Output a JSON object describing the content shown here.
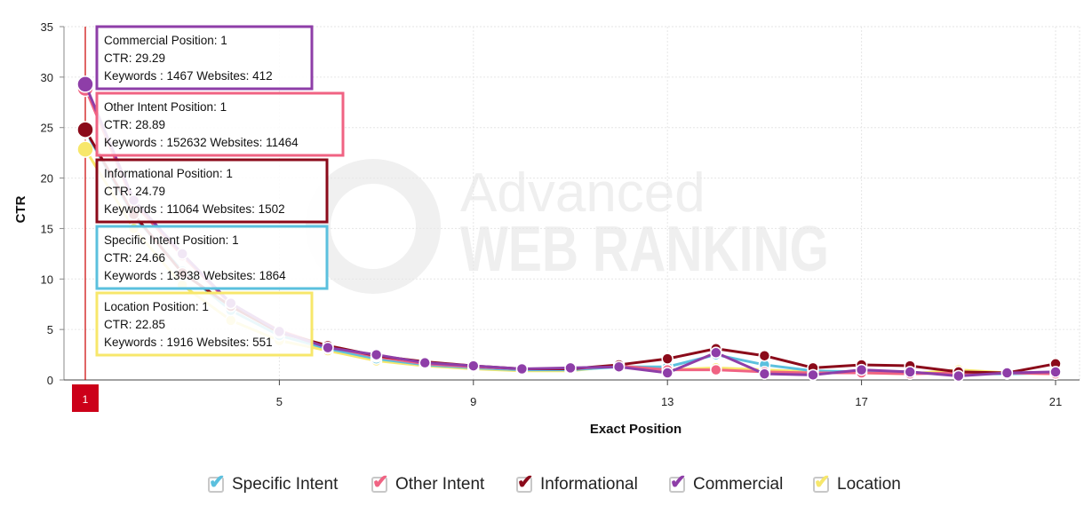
{
  "chart_data": {
    "type": "line",
    "title": "",
    "xlabel": "Exact Position",
    "ylabel": "CTR",
    "xlim": [
      1,
      21.5
    ],
    "ylim": [
      0,
      35
    ],
    "x_ticks": [
      5,
      9,
      13,
      17,
      21
    ],
    "y_ticks": [
      0,
      5,
      10,
      15,
      20,
      25,
      30,
      35
    ],
    "grid": true,
    "legend_position": "bottom",
    "watermark": "Advanced WEB RANKING",
    "crosshair_label": "1",
    "x": [
      1,
      2,
      3,
      4,
      5,
      6,
      7,
      8,
      9,
      10,
      11,
      12,
      13,
      14,
      15,
      16,
      17,
      18,
      19,
      20,
      21
    ],
    "series": [
      {
        "name": "Location",
        "color": "#f7e76b",
        "values": [
          22.85,
          15.0,
          9.4,
          5.9,
          3.9,
          2.9,
          1.9,
          1.4,
          1.1,
          0.9,
          0.9,
          1.4,
          1.0,
          1.2,
          1.0,
          0.8,
          0.7,
          0.6,
          1.0,
          0.7,
          0.6
        ]
      },
      {
        "name": "Specific Intent",
        "color": "#5bc0de",
        "values": [
          24.66,
          16.2,
          10.8,
          6.9,
          4.4,
          3.1,
          2.1,
          1.5,
          1.2,
          1.0,
          1.0,
          1.3,
          1.3,
          2.5,
          1.5,
          0.9,
          0.8,
          0.7,
          0.6,
          0.6,
          0.7
        ]
      },
      {
        "name": "Other Intent",
        "color": "#f06383",
        "values": [
          28.89,
          17.5,
          12.3,
          7.5,
          4.9,
          3.3,
          2.3,
          1.6,
          1.3,
          1.1,
          1.1,
          1.4,
          1.0,
          1.0,
          0.8,
          0.7,
          0.7,
          0.6,
          0.7,
          0.7,
          0.6
        ]
      },
      {
        "name": "Informational",
        "color": "#8b0a1a",
        "values": [
          24.79,
          16.4,
          10.6,
          7.3,
          4.7,
          3.4,
          2.4,
          1.8,
          1.4,
          1.1,
          1.1,
          1.5,
          2.1,
          3.1,
          2.4,
          1.2,
          1.5,
          1.4,
          0.8,
          0.7,
          1.6
        ]
      },
      {
        "name": "Commercial",
        "color": "#8e3ea8",
        "values": [
          29.29,
          17.8,
          12.5,
          7.6,
          4.8,
          3.2,
          2.5,
          1.7,
          1.4,
          1.1,
          1.2,
          1.3,
          0.7,
          2.7,
          0.6,
          0.5,
          1.0,
          0.8,
          0.4,
          0.7,
          0.8
        ]
      }
    ],
    "tooltips": [
      {
        "series": "Commercial",
        "color": "#8e3ea8",
        "lines": [
          "Commercial Position: 1",
          "CTR: 29.29",
          "Keywords : 1467 Websites: 412"
        ]
      },
      {
        "series": "Other Intent",
        "color": "#f06383",
        "lines": [
          "Other Intent Position: 1",
          "CTR: 28.89",
          "Keywords : 152632 Websites: 11464"
        ]
      },
      {
        "series": "Informational",
        "color": "#8b0a1a",
        "lines": [
          "Informational Position: 1",
          "CTR: 24.79",
          "Keywords : 11064 Websites: 1502"
        ]
      },
      {
        "series": "Specific Intent",
        "color": "#5bc0de",
        "lines": [
          "Specific Intent Position: 1",
          "CTR: 24.66",
          "Keywords : 13938 Websites: 1864"
        ]
      },
      {
        "series": "Location",
        "color": "#f7e76b",
        "lines": [
          "Location Position: 1",
          "CTR: 22.85",
          "Keywords : 1916 Websites: 551"
        ]
      }
    ]
  },
  "legend": {
    "items": [
      {
        "label": "Specific Intent",
        "color": "#5bc0de"
      },
      {
        "label": "Other Intent",
        "color": "#f06383"
      },
      {
        "label": "Informational",
        "color": "#8b0a1a"
      },
      {
        "label": "Commercial",
        "color": "#8e3ea8"
      },
      {
        "label": "Location",
        "color": "#f7e76b"
      }
    ]
  }
}
